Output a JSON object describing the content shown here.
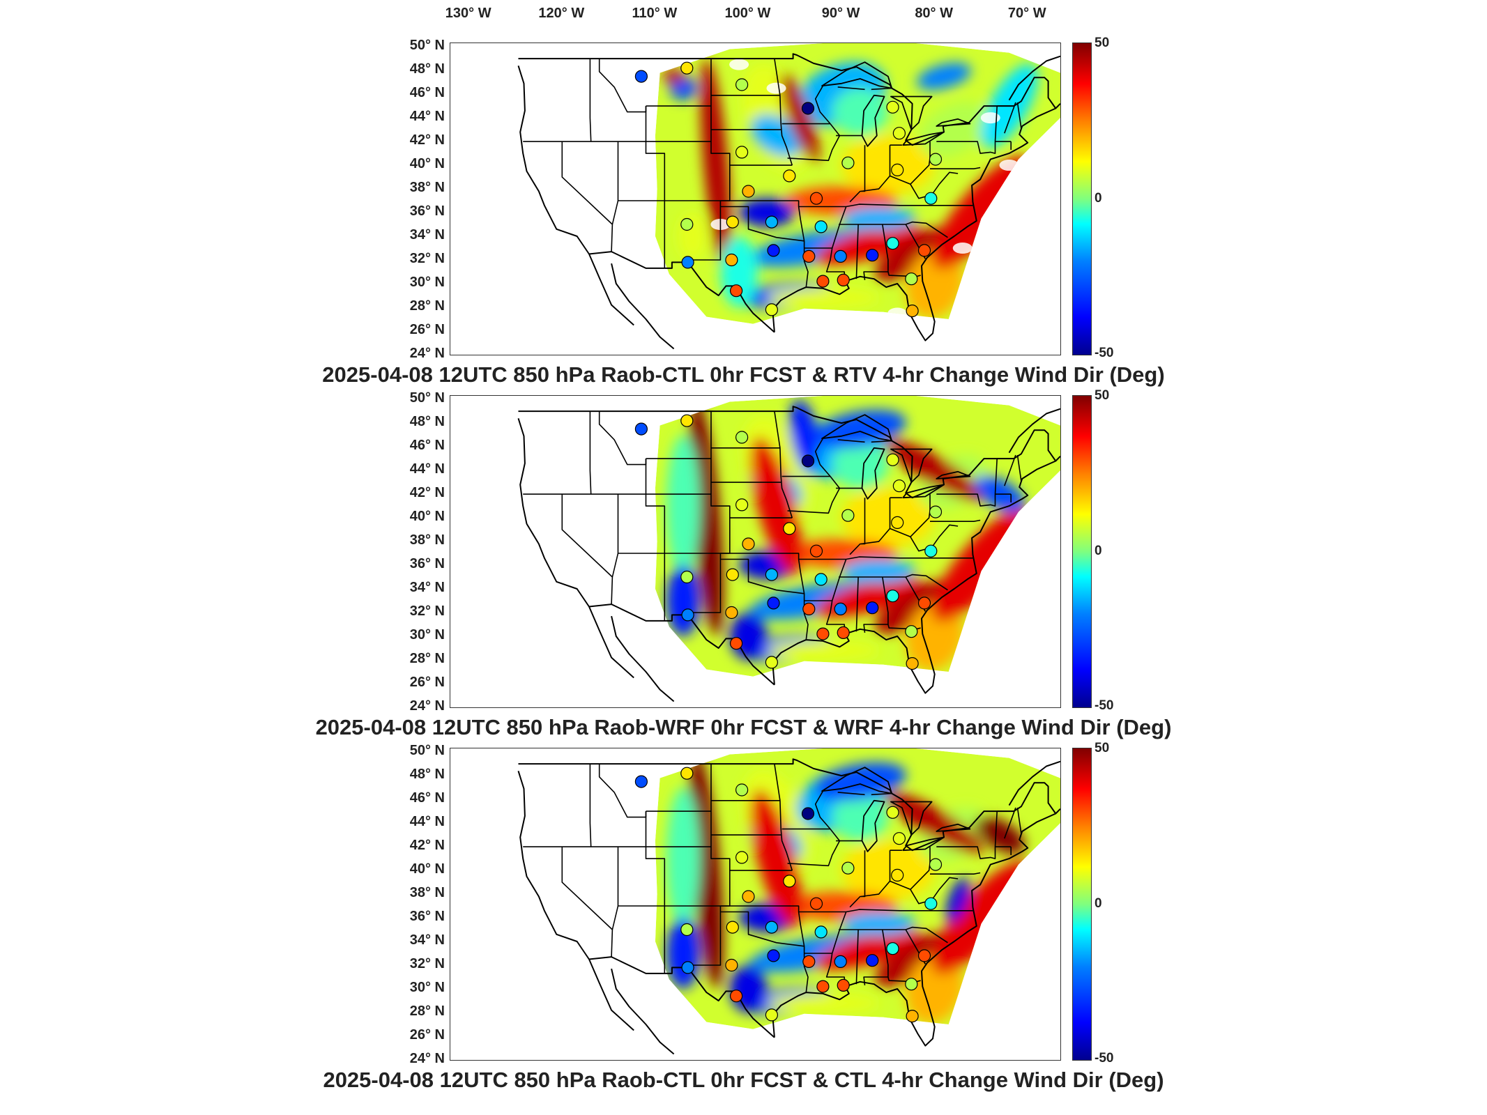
{
  "lon_labels": [
    "130° W",
    "120° W",
    "110° W",
    "100° W",
    "90° W",
    "80° W",
    "70° W"
  ],
  "lat_labels": [
    "50° N",
    "48° N",
    "46° N",
    "44° N",
    "42° N",
    "40° N",
    "38° N",
    "36° N",
    "34° N",
    "32° N",
    "30° N",
    "28° N",
    "26° N",
    "24° N"
  ],
  "colorbar": {
    "max_label": "50",
    "mid_label": "0",
    "min_label": "-50",
    "colormap": "jet"
  },
  "panels": [
    {
      "title": "2025-04-08 12UTC 850 hPa Raob-CTL 0hr FCST & RTV 4-hr Change Wind Dir (Deg)"
    },
    {
      "title": "2025-04-08 12UTC 850 hPa Raob-WRF 0hr FCST & WRF 4-hr Change Wind Dir (Deg)"
    },
    {
      "title": "2025-04-08 12UTC 850 hPa Raob-CTL 0hr FCST & CTL 4-hr Change Wind Dir (Deg)"
    }
  ],
  "stations": [
    {
      "lon": -111.5,
      "lat": 47.5,
      "value": -30
    },
    {
      "lon": -106.6,
      "lat": 48.2,
      "value": 15
    },
    {
      "lon": -100.7,
      "lat": 46.8,
      "value": 5
    },
    {
      "lon": -93.6,
      "lat": 44.8,
      "value": -50
    },
    {
      "lon": -100.7,
      "lat": 41.1,
      "value": 10
    },
    {
      "lon": -95.6,
      "lat": 39.1,
      "value": 15
    },
    {
      "lon": -100.0,
      "lat": 37.8,
      "value": 20
    },
    {
      "lon": -92.7,
      "lat": 37.2,
      "value": 30
    },
    {
      "lon": -89.3,
      "lat": 40.2,
      "value": 5
    },
    {
      "lon": -84.5,
      "lat": 44.9,
      "value": 10
    },
    {
      "lon": -83.8,
      "lat": 42.7,
      "value": 10
    },
    {
      "lon": -84.0,
      "lat": 39.6,
      "value": 15
    },
    {
      "lon": -79.9,
      "lat": 40.5,
      "value": 5
    },
    {
      "lon": -80.4,
      "lat": 37.2,
      "value": -10
    },
    {
      "lon": -101.7,
      "lat": 35.2,
      "value": 15
    },
    {
      "lon": -97.5,
      "lat": 35.2,
      "value": -20
    },
    {
      "lon": -92.2,
      "lat": 34.8,
      "value": -15
    },
    {
      "lon": -106.6,
      "lat": 35.0,
      "value": 5
    },
    {
      "lon": -106.5,
      "lat": 31.8,
      "value": -25
    },
    {
      "lon": -101.8,
      "lat": 32.0,
      "value": 20
    },
    {
      "lon": -97.3,
      "lat": 32.8,
      "value": -35
    },
    {
      "lon": -93.5,
      "lat": 32.3,
      "value": 30
    },
    {
      "lon": -90.1,
      "lat": 32.3,
      "value": -25
    },
    {
      "lon": -86.7,
      "lat": 32.4,
      "value": -35
    },
    {
      "lon": -84.5,
      "lat": 33.4,
      "value": -10
    },
    {
      "lon": -81.1,
      "lat": 32.8,
      "value": 30
    },
    {
      "lon": -82.5,
      "lat": 30.4,
      "value": 5
    },
    {
      "lon": -89.8,
      "lat": 30.3,
      "value": 30
    },
    {
      "lon": -92.0,
      "lat": 30.2,
      "value": 30
    },
    {
      "lon": -97.5,
      "lat": 27.8,
      "value": 10
    },
    {
      "lon": -82.4,
      "lat": 27.7,
      "value": 20
    },
    {
      "lon": -101.3,
      "lat": 29.4,
      "value": 30
    }
  ]
}
